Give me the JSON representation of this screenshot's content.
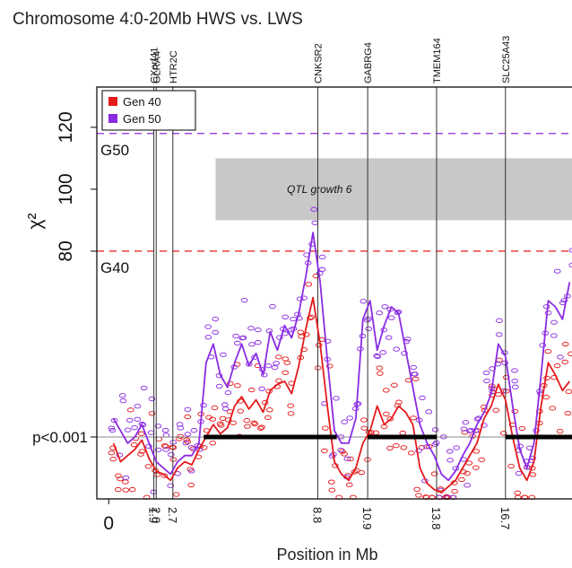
{
  "chart_data": {
    "type": "line",
    "title": "Chromosome 4:0-20Mb HWS vs. LWS",
    "xlabel": "Position in Mb",
    "ylabel": "χ²",
    "yticks": [
      "80",
      "100",
      "120"
    ],
    "xlim": [
      -0.5,
      19.5
    ],
    "ylim": [
      0,
      133
    ],
    "legend": {
      "placement": "top-left",
      "entries": [
        "Gen 40",
        "Gen 50"
      ]
    },
    "colors": {
      "Gen 40": "#e41a1c",
      "Gen 50": "#8a2be2",
      "threshold": "#000000",
      "qtl_box": "#c8c8c8"
    },
    "thresholds": [
      {
        "label": "G50",
        "y": 118,
        "series": "Gen 50"
      },
      {
        "label": "G40",
        "y": 80,
        "series": "Gen 40"
      }
    ],
    "significance": {
      "label": "p<0.001",
      "y": 20
    },
    "x_origin_label": "0",
    "qtl": {
      "label": "QTL growth 6",
      "x": [
        4.5,
        19.5
      ],
      "y": [
        90,
        110
      ]
    },
    "genes": [
      {
        "name": "CXorf41",
        "x": 1.9,
        "pos_label": "1.9"
      },
      {
        "name": "GLRA4",
        "x": 2.0,
        "pos_label": "2.0"
      },
      {
        "name": "HTR2C",
        "x": 2.7,
        "pos_label": "2.7"
      },
      {
        "name": "CNKSR2",
        "x": 8.8,
        "pos_label": "8.8"
      },
      {
        "name": "GABRG4",
        "x": 10.9,
        "pos_label": "10.9"
      },
      {
        "name": "TMEM164",
        "x": 13.8,
        "pos_label": "13.8"
      },
      {
        "name": "SLC25A43",
        "x": 16.7,
        "pos_label": "16.7"
      }
    ],
    "significant_segments": [
      [
        4.0,
        9.6
      ],
      [
        10.9,
        13.8
      ],
      [
        16.7,
        19.5
      ]
    ],
    "x": [
      0.2,
      0.5,
      0.8,
      1.1,
      1.4,
      1.7,
      2.0,
      2.3,
      2.6,
      2.9,
      3.2,
      3.5,
      3.8,
      4.1,
      4.4,
      4.7,
      5.0,
      5.3,
      5.6,
      5.9,
      6.2,
      6.5,
      6.8,
      7.1,
      7.4,
      7.7,
      8.0,
      8.3,
      8.6,
      8.9,
      9.2,
      9.5,
      9.8,
      10.1,
      10.4,
      10.7,
      11.0,
      11.3,
      11.6,
      11.9,
      12.2,
      12.5,
      12.8,
      13.1,
      13.4,
      13.7,
      14.0,
      14.3,
      14.6,
      14.9,
      15.2,
      15.5,
      15.8,
      16.1,
      16.4,
      16.7,
      17.0,
      17.3,
      17.6,
      17.9,
      18.2,
      18.5,
      18.8,
      19.1,
      19.4
    ],
    "series": [
      {
        "name": "Gen 40",
        "values": [
          18,
          12,
          14,
          16,
          19,
          13,
          9,
          8,
          6,
          10,
          12,
          11,
          16,
          20,
          24,
          21,
          23,
          30,
          33,
          29,
          32,
          28,
          35,
          37,
          38,
          34,
          43,
          55,
          65,
          50,
          30,
          12,
          8,
          6,
          10,
          18,
          22,
          30,
          24,
          26,
          30,
          28,
          24,
          10,
          5,
          3,
          2,
          4,
          6,
          10,
          14,
          18,
          26,
          30,
          37,
          32,
          20,
          10,
          6,
          12,
          30,
          44,
          40,
          35,
          38
        ]
      },
      {
        "name": "Gen 50",
        "values": [
          26,
          22,
          18,
          20,
          24,
          18,
          12,
          10,
          8,
          12,
          14,
          14,
          18,
          44,
          50,
          40,
          36,
          44,
          50,
          43,
          47,
          40,
          54,
          48,
          56,
          52,
          60,
          72,
          86,
          70,
          45,
          22,
          18,
          18,
          26,
          58,
          64,
          48,
          56,
          62,
          60,
          48,
          36,
          24,
          18,
          14,
          8,
          6,
          9,
          14,
          18,
          24,
          28,
          34,
          50,
          46,
          30,
          16,
          10,
          18,
          40,
          64,
          62,
          58,
          70
        ]
      }
    ]
  }
}
